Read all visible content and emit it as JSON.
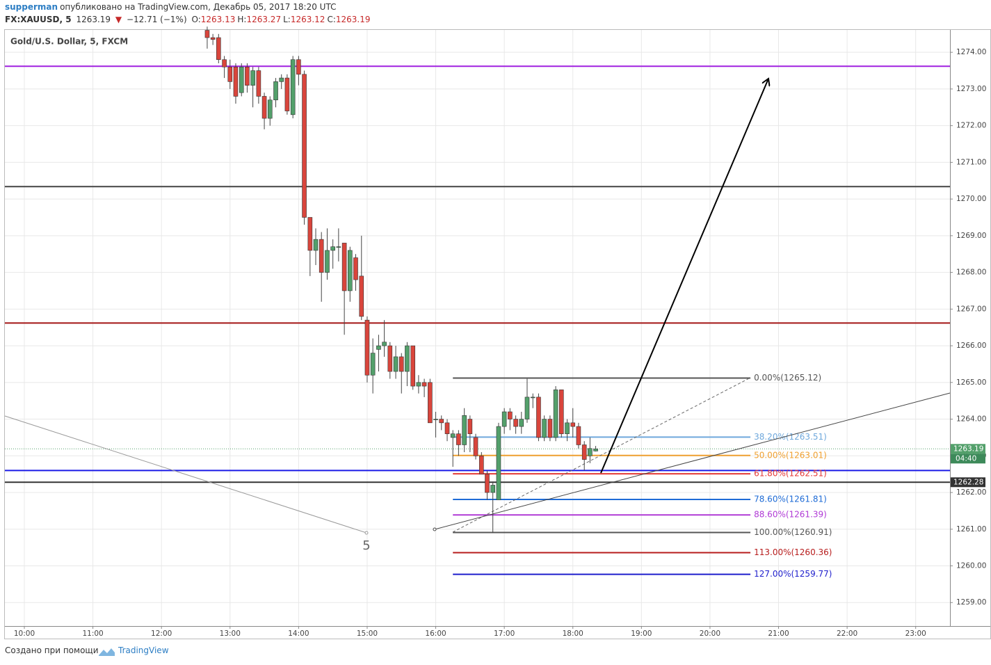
{
  "header": {
    "author": "supperman",
    "published": "опубликовано на TradingView.com, Декабрь 05, 2017 18:20 UTC",
    "symbol": "FX:XAUUSD, 5",
    "last": 1263.19,
    "arrow": "▼",
    "change": "−12.71 (−1%)",
    "ohlc": [
      {
        "key": "O:",
        "value": 1263.13
      },
      {
        "key": "H:",
        "value": 1263.27
      },
      {
        "key": "L:",
        "value": 1263.12
      },
      {
        "key": "C:",
        "value": 1263.19
      }
    ]
  },
  "chart_data": {
    "type": "candlestick",
    "title": "Gold/U.S. Dollar, 5, FXCM",
    "up_color": "#53a06b",
    "down_color": "#d9453c",
    "grid": true,
    "xlim": [
      9.716,
      23.5
    ],
    "xticks": [
      {
        "value": 10,
        "label": "10:00"
      },
      {
        "value": 11,
        "label": "11:00"
      },
      {
        "value": 12,
        "label": "12:00"
      },
      {
        "value": 13,
        "label": "13:00"
      },
      {
        "value": 14,
        "label": "14:00"
      },
      {
        "value": 15,
        "label": "15:00"
      },
      {
        "value": 16,
        "label": "16:00"
      },
      {
        "value": 17,
        "label": "17:00"
      },
      {
        "value": 18,
        "label": "18:00"
      },
      {
        "value": 19,
        "label": "19:00"
      },
      {
        "value": 20,
        "label": "20:00"
      },
      {
        "value": 21,
        "label": "21:00"
      },
      {
        "value": 22,
        "label": "22:00"
      },
      {
        "value": 23,
        "label": "23:00"
      }
    ],
    "ylim": [
      1258.36,
      1274.61
    ],
    "yticks": [
      {
        "value": 1259,
        "label": "1259.00"
      },
      {
        "value": 1260,
        "label": "1260.00"
      },
      {
        "value": 1261,
        "label": "1261.00"
      },
      {
        "value": 1262,
        "label": "1262.00"
      },
      {
        "value": 1263,
        "label": "1263.00"
      },
      {
        "value": 1264,
        "label": "1264.00"
      },
      {
        "value": 1265,
        "label": "1265.00"
      },
      {
        "value": 1266,
        "label": "1266.00"
      },
      {
        "value": 1267,
        "label": "1267.00"
      },
      {
        "value": 1268,
        "label": "1268.00"
      },
      {
        "value": 1269,
        "label": "1269.00"
      },
      {
        "value": 1270,
        "label": "1270.00"
      },
      {
        "value": 1271,
        "label": "1271.00"
      },
      {
        "value": 1272,
        "label": "1272.00"
      },
      {
        "value": 1273,
        "label": "1273.00"
      },
      {
        "value": 1274,
        "label": "1274.00"
      }
    ],
    "x": [
      12.667,
      12.75,
      12.833,
      12.917,
      13.0,
      13.083,
      13.167,
      13.25,
      13.333,
      13.417,
      13.5,
      13.583,
      13.667,
      13.75,
      13.833,
      13.917,
      14.0,
      14.083,
      14.167,
      14.25,
      14.333,
      14.417,
      14.5,
      14.583,
      14.667,
      14.75,
      14.833,
      14.917,
      15.0,
      15.083,
      15.167,
      15.25,
      15.333,
      15.417,
      15.5,
      15.583,
      15.667,
      15.75,
      15.833,
      15.917,
      16.0,
      16.083,
      16.167,
      16.25,
      16.333,
      16.417,
      16.5,
      16.583,
      16.667,
      16.75,
      16.833,
      16.917,
      17.0,
      17.083,
      17.167,
      17.25,
      17.333,
      17.417,
      17.5,
      17.583,
      17.667,
      17.75,
      17.833,
      17.917,
      18.0,
      18.083,
      18.167,
      18.25,
      18.333
    ],
    "open": [
      1274.6,
      1274.4,
      1274.4,
      1273.8,
      1273.6,
      1273.6,
      1272.9,
      1273.6,
      1273.1,
      1273.5,
      1272.8,
      1272.2,
      1272.7,
      1273.2,
      1273.3,
      1272.3,
      1273.8,
      1273.4,
      1269.5,
      1268.6,
      1268.9,
      1268.0,
      1268.6,
      1268.7,
      1268.8,
      1267.5,
      1268.4,
      1267.9,
      1266.7,
      1265.2,
      1265.9,
      1266.0,
      1266.0,
      1265.3,
      1265.7,
      1265.3,
      1266.0,
      1264.9,
      1265.0,
      1265.0,
      1264.0,
      1264.0,
      1263.9,
      1263.5,
      1263.6,
      1263.3,
      1264.0,
      1263.5,
      1263.0,
      1262.5,
      1262.0,
      1261.8,
      1263.8,
      1264.2,
      1264.0,
      1263.8,
      1264.0,
      1264.6,
      1264.6,
      1263.5,
      1264.0,
      1263.5,
      1264.8,
      1263.6,
      1263.9,
      1263.8,
      1263.3,
      1263.0,
      1263.13
    ],
    "high": [
      1274.7,
      1274.5,
      1274.5,
      1273.9,
      1273.8,
      1273.7,
      1273.7,
      1273.7,
      1273.6,
      1273.6,
      1272.9,
      1272.8,
      1273.3,
      1273.4,
      1273.4,
      1273.9,
      1273.9,
      1273.5,
      1269.5,
      1269.2,
      1269.1,
      1269.2,
      1268.9,
      1269.2,
      1268.8,
      1268.7,
      1268.5,
      1269.0,
      1266.8,
      1266.2,
      1266.3,
      1266.7,
      1266.1,
      1266.0,
      1265.8,
      1266.1,
      1266.0,
      1265.2,
      1265.1,
      1265.1,
      1264.2,
      1264.1,
      1264.0,
      1263.7,
      1263.7,
      1264.3,
      1264.1,
      1263.6,
      1263.1,
      1262.6,
      1262.3,
      1263.9,
      1264.3,
      1264.3,
      1264.1,
      1264.2,
      1265.1,
      1264.7,
      1264.7,
      1264.1,
      1264.1,
      1264.9,
      1264.8,
      1264.0,
      1264.3,
      1263.9,
      1263.4,
      1263.5,
      1263.27
    ],
    "low": [
      1274.1,
      1274.2,
      1273.7,
      1273.3,
      1273.0,
      1272.6,
      1272.8,
      1272.9,
      1272.5,
      1272.6,
      1271.9,
      1272.0,
      1272.5,
      1273.0,
      1272.3,
      1272.2,
      1273.1,
      1269.3,
      1267.9,
      1268.2,
      1267.2,
      1267.8,
      1268.1,
      1268.3,
      1266.3,
      1267.2,
      1267.5,
      1266.7,
      1265.0,
      1264.7,
      1265.3,
      1265.7,
      1265.1,
      1265.1,
      1264.7,
      1264.9,
      1264.8,
      1264.7,
      1264.6,
      1263.9,
      1263.5,
      1263.7,
      1263.4,
      1262.7,
      1263.0,
      1263.1,
      1263.1,
      1262.9,
      1262.5,
      1261.8,
      1260.9,
      1261.8,
      1263.6,
      1263.7,
      1263.6,
      1263.6,
      1263.9,
      1264.3,
      1263.4,
      1263.4,
      1263.4,
      1263.4,
      1263.5,
      1263.4,
      1263.5,
      1263.2,
      1262.6,
      1262.8,
      1263.12
    ],
    "close": [
      1274.4,
      1274.35,
      1273.8,
      1273.6,
      1273.2,
      1272.8,
      1273.6,
      1273.1,
      1273.5,
      1272.8,
      1272.2,
      1272.7,
      1273.2,
      1273.3,
      1272.4,
      1273.8,
      1273.4,
      1269.5,
      1268.6,
      1268.9,
      1268.0,
      1268.6,
      1268.7,
      1268.7,
      1267.5,
      1268.6,
      1267.8,
      1266.8,
      1265.2,
      1265.8,
      1266.0,
      1266.1,
      1265.3,
      1265.7,
      1265.3,
      1266.0,
      1264.9,
      1265.0,
      1264.9,
      1263.9,
      1264.0,
      1263.9,
      1263.6,
      1263.6,
      1263.3,
      1264.1,
      1263.6,
      1263.0,
      1262.5,
      1262.0,
      1262.2,
      1263.8,
      1264.2,
      1264.0,
      1263.8,
      1264.0,
      1264.6,
      1264.6,
      1263.5,
      1264.0,
      1263.5,
      1264.8,
      1263.6,
      1263.9,
      1263.8,
      1263.3,
      1262.9,
      1263.2,
      1263.19
    ],
    "hlines": [
      {
        "value": 1273.62,
        "color": "#a020e0"
      },
      {
        "value": 1270.34,
        "color": "#444444"
      },
      {
        "value": 1266.62,
        "color": "#a31515"
      },
      {
        "value": 1262.6,
        "color": "#1a1ae6"
      },
      {
        "value": 1262.28,
        "color": "#333333",
        "tag": true
      }
    ],
    "last_price": 1263.19,
    "countdown": "04:40",
    "fib_range": [
      16.25,
      20.59
    ],
    "fib_levels": [
      {
        "value": 1265.12,
        "label": "0.00%(1265.12)",
        "color": "#555555"
      },
      {
        "value": 1263.51,
        "label": "38.20%(1263.51)",
        "color": "#6fa8dc"
      },
      {
        "value": 1263.01,
        "label": "50.00%(1263.01)",
        "color": "#f0a030"
      },
      {
        "value": 1262.51,
        "label": "61.80%(1262.51)",
        "color": "#e53935"
      },
      {
        "value": 1261.81,
        "label": "78.60%(1261.81)",
        "color": "#1e6bd6"
      },
      {
        "value": 1261.39,
        "label": "88.60%(1261.39)",
        "color": "#b03ad6"
      },
      {
        "value": 1260.91,
        "label": "100.00%(1260.91)",
        "color": "#555555"
      },
      {
        "value": 1260.36,
        "label": "113.00%(1260.36)",
        "color": "#b71c1c"
      },
      {
        "value": 1259.77,
        "label": "127.00%(1259.77)",
        "color": "#1e1ecc"
      }
    ],
    "annotations": [
      "5"
    ]
  },
  "footer": {
    "made_with": "Создано при помощи",
    "brand": "TradingView"
  }
}
